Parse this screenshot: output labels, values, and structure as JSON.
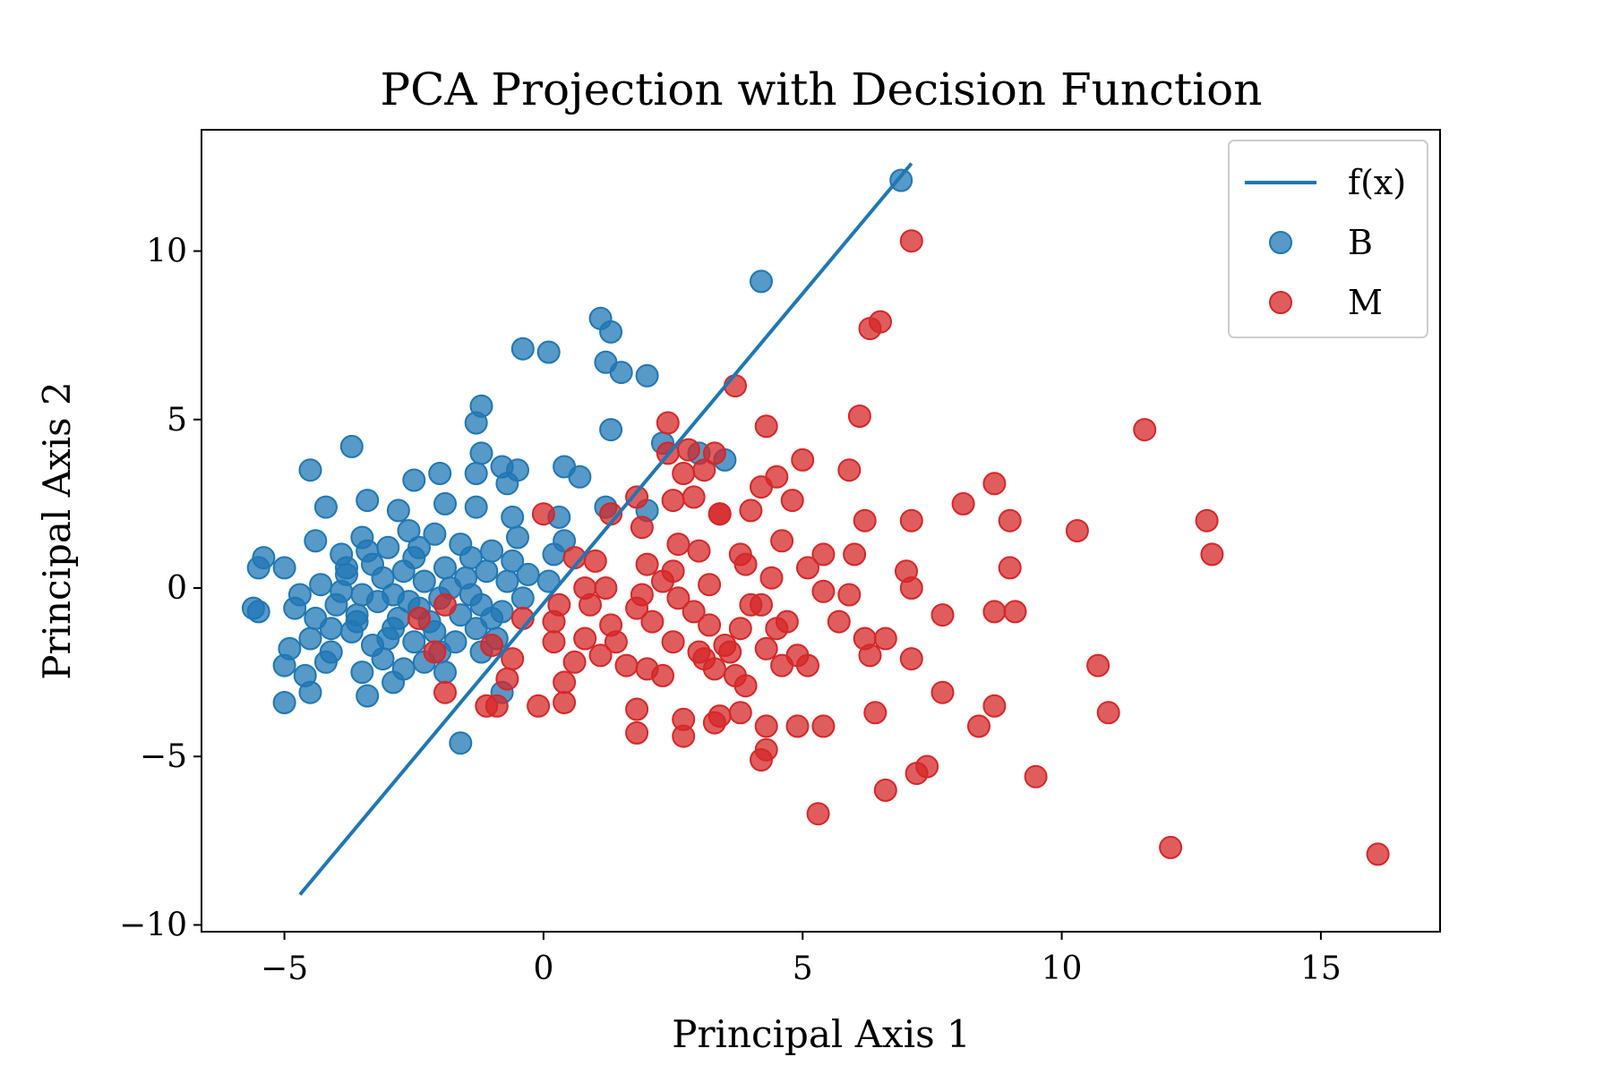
{
  "chart_data": {
    "type": "scatter",
    "title": "PCA Projection with Decision Function",
    "xlabel": "Principal Axis 1",
    "ylabel": "Principal Axis 2",
    "xlim": [
      -6.6,
      17.3
    ],
    "ylim": [
      -10.2,
      13.6
    ],
    "xticks": [
      -5,
      0,
      5,
      10,
      15
    ],
    "yticks": [
      -10,
      -5,
      0,
      5,
      10
    ],
    "xtick_labels": [
      "−5",
      "0",
      "5",
      "10",
      "15"
    ],
    "ytick_labels": [
      "−10",
      "−5",
      "0",
      "5",
      "10"
    ],
    "grid": false,
    "legend_position": "top-right",
    "colors": {
      "B": "#1f77b4",
      "M": "#d62728",
      "line": "#1f77b4"
    },
    "line": {
      "name": "f(x)",
      "points": [
        [
          -4.7,
          -9.1
        ],
        [
          7.1,
          12.6
        ]
      ]
    },
    "series": [
      {
        "name": "B",
        "color": "#1f77b4",
        "points": [
          [
            6.9,
            12.1
          ],
          [
            4.2,
            9.1
          ],
          [
            1.1,
            8.0
          ],
          [
            1.3,
            7.6
          ],
          [
            -0.4,
            7.1
          ],
          [
            0.1,
            7.0
          ],
          [
            1.2,
            6.7
          ],
          [
            1.5,
            6.4
          ],
          [
            2.0,
            6.3
          ],
          [
            -1.2,
            5.4
          ],
          [
            -1.3,
            4.9
          ],
          [
            1.3,
            4.7
          ],
          [
            2.3,
            4.3
          ],
          [
            -3.7,
            4.2
          ],
          [
            -1.2,
            4.0
          ],
          [
            3.0,
            4.0
          ],
          [
            3.5,
            3.8
          ],
          [
            -0.8,
            3.6
          ],
          [
            0.4,
            3.6
          ],
          [
            -4.5,
            3.5
          ],
          [
            -1.3,
            3.4
          ],
          [
            -0.5,
            3.5
          ],
          [
            0.7,
            3.3
          ],
          [
            -2.5,
            3.2
          ],
          [
            -2.0,
            3.4
          ],
          [
            -0.7,
            3.1
          ],
          [
            -4.2,
            2.4
          ],
          [
            -3.4,
            2.6
          ],
          [
            -2.8,
            2.3
          ],
          [
            -1.9,
            2.5
          ],
          [
            -1.3,
            2.4
          ],
          [
            1.2,
            2.4
          ],
          [
            2.0,
            2.3
          ],
          [
            0.3,
            2.1
          ],
          [
            -0.6,
            2.1
          ],
          [
            -4.4,
            1.4
          ],
          [
            -5.4,
            0.9
          ],
          [
            -5.5,
            0.6
          ],
          [
            -5.0,
            0.6
          ],
          [
            -3.9,
            1.0
          ],
          [
            -3.5,
            1.5
          ],
          [
            -3.0,
            1.2
          ],
          [
            -2.6,
            1.7
          ],
          [
            -2.1,
            1.6
          ],
          [
            -1.6,
            1.3
          ],
          [
            -1.0,
            1.1
          ],
          [
            -0.5,
            1.5
          ],
          [
            0.2,
            1.0
          ],
          [
            0.4,
            1.4
          ],
          [
            -4.7,
            -0.2
          ],
          [
            -4.3,
            0.1
          ],
          [
            -3.8,
            0.4
          ],
          [
            -3.5,
            -0.2
          ],
          [
            -3.1,
            0.3
          ],
          [
            -2.7,
            0.5
          ],
          [
            -2.3,
            0.2
          ],
          [
            -1.9,
            0.6
          ],
          [
            -1.5,
            0.3
          ],
          [
            -1.1,
            0.5
          ],
          [
            -0.7,
            0.2
          ],
          [
            -0.3,
            0.4
          ],
          [
            0.1,
            0.2
          ],
          [
            -5.6,
            -0.6
          ],
          [
            -5.5,
            -0.7
          ],
          [
            -4.8,
            -0.6
          ],
          [
            -4.4,
            -0.9
          ],
          [
            -4.0,
            -0.5
          ],
          [
            -3.6,
            -0.8
          ],
          [
            -3.2,
            -0.4
          ],
          [
            -2.8,
            -0.9
          ],
          [
            -2.4,
            -0.6
          ],
          [
            -2.0,
            -0.3
          ],
          [
            -1.6,
            -0.8
          ],
          [
            -1.2,
            -0.5
          ],
          [
            -0.8,
            -0.7
          ],
          [
            -0.4,
            -0.3
          ],
          [
            -4.9,
            -1.8
          ],
          [
            -4.5,
            -1.5
          ],
          [
            -4.1,
            -1.9
          ],
          [
            -3.7,
            -1.3
          ],
          [
            -3.3,
            -1.7
          ],
          [
            -2.9,
            -1.2
          ],
          [
            -2.5,
            -1.6
          ],
          [
            -2.1,
            -1.3
          ],
          [
            -1.7,
            -1.6
          ],
          [
            -1.3,
            -1.2
          ],
          [
            -0.9,
            -1.5
          ],
          [
            -5.0,
            -2.3
          ],
          [
            -4.6,
            -2.6
          ],
          [
            -4.2,
            -2.2
          ],
          [
            -3.5,
            -2.5
          ],
          [
            -3.1,
            -2.1
          ],
          [
            -2.7,
            -2.4
          ],
          [
            -2.3,
            -2.2
          ],
          [
            -1.9,
            -2.5
          ],
          [
            -5.0,
            -3.4
          ],
          [
            -4.5,
            -3.1
          ],
          [
            -3.4,
            -3.2
          ],
          [
            -2.9,
            -2.8
          ],
          [
            -0.8,
            -3.1
          ],
          [
            -1.6,
            -4.6
          ],
          [
            -3.9,
            -0.1
          ],
          [
            -3.3,
            0.7
          ],
          [
            -2.9,
            -0.2
          ],
          [
            -2.5,
            0.9
          ],
          [
            -2.2,
            -1.0
          ],
          [
            -1.8,
            0.0
          ],
          [
            -1.4,
            -0.2
          ],
          [
            -1.0,
            -0.9
          ],
          [
            -3.6,
            -1.0
          ],
          [
            -3.0,
            -1.5
          ],
          [
            -2.6,
            -0.4
          ],
          [
            -3.4,
            1.1
          ],
          [
            -2.4,
            1.2
          ],
          [
            -1.4,
            0.9
          ],
          [
            -0.6,
            0.8
          ],
          [
            -4.1,
            -1.2
          ],
          [
            -3.8,
            0.6
          ],
          [
            -2.0,
            -1.9
          ],
          [
            -1.2,
            -1.9
          ]
        ]
      },
      {
        "name": "M",
        "color": "#d62728",
        "points": [
          [
            7.1,
            10.3
          ],
          [
            6.3,
            7.7
          ],
          [
            6.5,
            7.9
          ],
          [
            3.7,
            6.0
          ],
          [
            2.4,
            4.9
          ],
          [
            4.3,
            4.8
          ],
          [
            6.1,
            5.1
          ],
          [
            11.6,
            4.7
          ],
          [
            2.4,
            4.0
          ],
          [
            2.8,
            4.1
          ],
          [
            3.3,
            4.0
          ],
          [
            2.7,
            3.4
          ],
          [
            3.1,
            3.5
          ],
          [
            5.0,
            3.8
          ],
          [
            5.9,
            3.5
          ],
          [
            4.5,
            3.3
          ],
          [
            4.2,
            3.0
          ],
          [
            3.4,
            2.2
          ],
          [
            2.9,
            2.7
          ],
          [
            8.7,
            3.1
          ],
          [
            1.8,
            2.7
          ],
          [
            2.5,
            2.6
          ],
          [
            4.8,
            2.6
          ],
          [
            8.1,
            2.5
          ],
          [
            6.2,
            2.0
          ],
          [
            7.1,
            2.0
          ],
          [
            9.0,
            2.0
          ],
          [
            12.8,
            2.0
          ],
          [
            10.3,
            1.7
          ],
          [
            0.0,
            2.2
          ],
          [
            1.3,
            2.2
          ],
          [
            1.9,
            1.8
          ],
          [
            2.6,
            1.3
          ],
          [
            3.4,
            2.2
          ],
          [
            4.0,
            2.3
          ],
          [
            4.6,
            1.4
          ],
          [
            3.0,
            1.1
          ],
          [
            3.8,
            1.0
          ],
          [
            5.4,
            1.0
          ],
          [
            6.0,
            1.0
          ],
          [
            12.9,
            1.0
          ],
          [
            2.0,
            0.7
          ],
          [
            3.9,
            0.7
          ],
          [
            5.1,
            0.6
          ],
          [
            7.0,
            0.5
          ],
          [
            0.6,
            0.9
          ],
          [
            1.0,
            0.8
          ],
          [
            2.5,
            0.5
          ],
          [
            0.8,
            0.0
          ],
          [
            1.2,
            0.0
          ],
          [
            1.9,
            -0.2
          ],
          [
            2.6,
            -0.3
          ],
          [
            3.2,
            0.1
          ],
          [
            4.4,
            0.3
          ],
          [
            5.4,
            -0.1
          ],
          [
            5.9,
            -0.2
          ],
          [
            7.1,
            0.0
          ],
          [
            9.0,
            0.6
          ],
          [
            0.3,
            -0.5
          ],
          [
            0.9,
            -0.5
          ],
          [
            1.8,
            -0.6
          ],
          [
            2.9,
            -0.7
          ],
          [
            4.2,
            -0.5
          ],
          [
            7.7,
            -0.8
          ],
          [
            8.7,
            -0.7
          ],
          [
            9.1,
            -0.7
          ],
          [
            -0.4,
            -0.9
          ],
          [
            -2.4,
            -0.9
          ],
          [
            -1.9,
            -0.5
          ],
          [
            0.2,
            -1.0
          ],
          [
            1.3,
            -1.1
          ],
          [
            2.1,
            -1.0
          ],
          [
            3.2,
            -1.1
          ],
          [
            3.8,
            -1.2
          ],
          [
            4.7,
            -1.0
          ],
          [
            5.7,
            -1.0
          ],
          [
            6.2,
            -1.5
          ],
          [
            6.6,
            -1.5
          ],
          [
            -1.0,
            -1.7
          ],
          [
            -2.1,
            -1.9
          ],
          [
            0.2,
            -1.6
          ],
          [
            0.8,
            -1.5
          ],
          [
            1.4,
            -1.6
          ],
          [
            2.5,
            -1.6
          ],
          [
            3.0,
            -1.9
          ],
          [
            3.5,
            -1.7
          ],
          [
            4.3,
            -1.8
          ],
          [
            4.9,
            -2.0
          ],
          [
            6.3,
            -2.0
          ],
          [
            7.1,
            -2.1
          ],
          [
            -0.6,
            -2.1
          ],
          [
            0.6,
            -2.2
          ],
          [
            1.6,
            -2.3
          ],
          [
            2.3,
            -2.6
          ],
          [
            3.3,
            -2.4
          ],
          [
            3.7,
            -2.6
          ],
          [
            4.6,
            -2.3
          ],
          [
            5.1,
            -2.3
          ],
          [
            10.7,
            -2.3
          ],
          [
            -1.9,
            -3.1
          ],
          [
            -0.9,
            -3.5
          ],
          [
            -0.1,
            -3.5
          ],
          [
            0.4,
            -3.4
          ],
          [
            0.4,
            -2.8
          ],
          [
            1.8,
            -3.6
          ],
          [
            2.7,
            -3.9
          ],
          [
            3.4,
            -3.8
          ],
          [
            3.8,
            -3.7
          ],
          [
            6.4,
            -3.7
          ],
          [
            7.7,
            -3.1
          ],
          [
            8.7,
            -3.5
          ],
          [
            10.9,
            -3.7
          ],
          [
            1.8,
            -4.3
          ],
          [
            2.7,
            -4.4
          ],
          [
            3.3,
            -4.0
          ],
          [
            4.3,
            -4.1
          ],
          [
            4.9,
            -4.1
          ],
          [
            5.4,
            -4.1
          ],
          [
            8.4,
            -4.1
          ],
          [
            7.2,
            -5.5
          ],
          [
            7.4,
            -5.3
          ],
          [
            9.5,
            -5.6
          ],
          [
            4.2,
            -5.1
          ],
          [
            4.3,
            -4.8
          ],
          [
            6.6,
            -6.0
          ],
          [
            5.3,
            -6.7
          ],
          [
            12.1,
            -7.7
          ],
          [
            16.1,
            -7.9
          ],
          [
            3.6,
            -1.9
          ],
          [
            3.1,
            -2.1
          ],
          [
            3.9,
            -2.9
          ],
          [
            2.0,
            -2.4
          ],
          [
            1.1,
            -2.0
          ],
          [
            -0.7,
            -2.7
          ],
          [
            -1.1,
            -3.5
          ],
          [
            4.0,
            -0.5
          ],
          [
            4.5,
            -1.2
          ],
          [
            2.3,
            0.2
          ]
        ]
      }
    ]
  }
}
